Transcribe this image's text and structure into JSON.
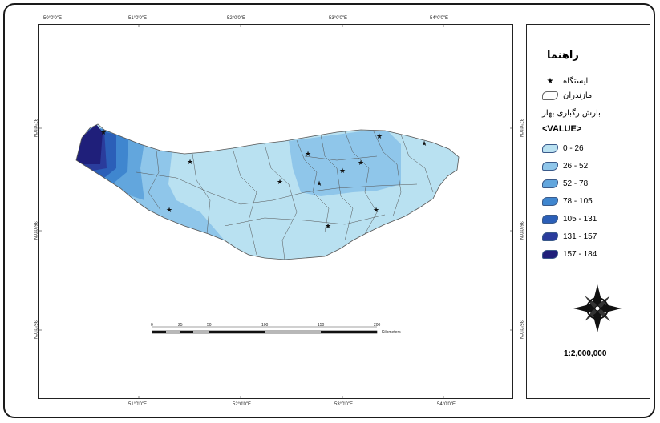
{
  "map": {
    "lon_ticks_top": [
      "50°0'0\"E",
      "51°0'0\"E",
      "52°0'0\"E",
      "53°0'0\"E",
      "54°0'0\"E"
    ],
    "lon_ticks_bottom": [
      "51°0'0\"E",
      "52°0'0\"E",
      "53°0'0\"E",
      "54°0'0\"E"
    ],
    "lat_ticks_left": [
      "37°0'0\"N",
      "36°0'0\"N",
      "35°0'0\"N"
    ],
    "lat_ticks_right": [
      "37°0'0\"N",
      "36°0'0\"N",
      "35°0'0\"N"
    ],
    "scalebar": {
      "labels": [
        "0",
        "25",
        "50",
        "100",
        "150",
        "200"
      ],
      "unit": "Kilometers"
    }
  },
  "legend": {
    "title": "راهنما",
    "station_label": "ایستگاه",
    "province_label": "مازندران",
    "heading": "بارش رگباری بهار",
    "value_label": "<VALUE>",
    "classes": [
      {
        "label": "0 - 26",
        "color": "#b9e1f1"
      },
      {
        "label": "26 - 52",
        "color": "#8fc6ea"
      },
      {
        "label": "52 - 78",
        "color": "#62a6dd"
      },
      {
        "label": "78 - 105",
        "color": "#3f86cf"
      },
      {
        "label": "105 - 131",
        "color": "#2b5fb8"
      },
      {
        "label": "131 - 157",
        "color": "#2a3c9c"
      },
      {
        "label": "157 - 184",
        "color": "#1f1f7a"
      }
    ],
    "scale": "1:2,000,000"
  }
}
